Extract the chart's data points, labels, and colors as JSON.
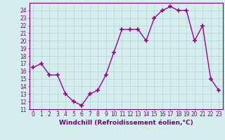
{
  "x": [
    0,
    1,
    2,
    3,
    4,
    5,
    6,
    7,
    8,
    9,
    10,
    11,
    12,
    13,
    14,
    15,
    16,
    17,
    18,
    19,
    20,
    21,
    22,
    23
  ],
  "y": [
    16.5,
    17.0,
    15.5,
    15.5,
    13.0,
    12.0,
    11.5,
    13.0,
    13.5,
    15.5,
    18.5,
    21.5,
    21.5,
    21.5,
    20.0,
    23.0,
    24.0,
    24.5,
    24.0,
    24.0,
    20.0,
    22.0,
    15.0,
    13.5
  ],
  "line_color": "#990099",
  "marker": "+",
  "marker_size": 4,
  "marker_lw": 1.2,
  "line_width": 1.0,
  "xlabel": "Windchill (Refroidissement éolien,°C)",
  "xlim": [
    -0.5,
    23.5
  ],
  "ylim": [
    11,
    25
  ],
  "yticks": [
    11,
    12,
    13,
    14,
    15,
    16,
    17,
    18,
    19,
    20,
    21,
    22,
    23,
    24
  ],
  "xticks": [
    0,
    1,
    2,
    3,
    4,
    5,
    6,
    7,
    8,
    9,
    10,
    11,
    12,
    13,
    14,
    15,
    16,
    17,
    18,
    19,
    20,
    21,
    22,
    23
  ],
  "background_color": "#d5eeed",
  "grid_color": "#b0d5d0",
  "tick_fontsize": 5.5,
  "xlabel_fontsize": 6.5,
  "label_color": "#770077",
  "spine_color": "#770077"
}
